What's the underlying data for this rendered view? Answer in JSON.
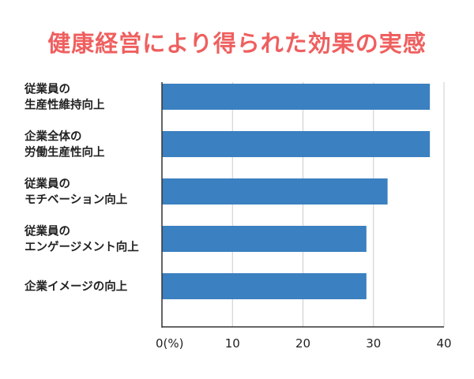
{
  "chart_data": {
    "type": "bar",
    "orientation": "horizontal",
    "title": "健康経営により得られた効果の実感",
    "categories": [
      [
        "従業員の",
        "生産性維持向上"
      ],
      [
        "企業全体の",
        "労働生産性向上"
      ],
      [
        "従業員の",
        "モチベーション向上"
      ],
      [
        "従業員の",
        "エンゲージメント向上"
      ],
      [
        "企業イメージの向上"
      ]
    ],
    "values": [
      38,
      38,
      32,
      29,
      29
    ],
    "xlim": [
      0,
      40
    ],
    "xticks": [
      "0(%)",
      "10",
      "20",
      "30",
      "40"
    ],
    "xlabel": "",
    "ylabel": "",
    "grid": true,
    "bar_color": "#3b80c0",
    "grid_color": "#cccccc"
  }
}
